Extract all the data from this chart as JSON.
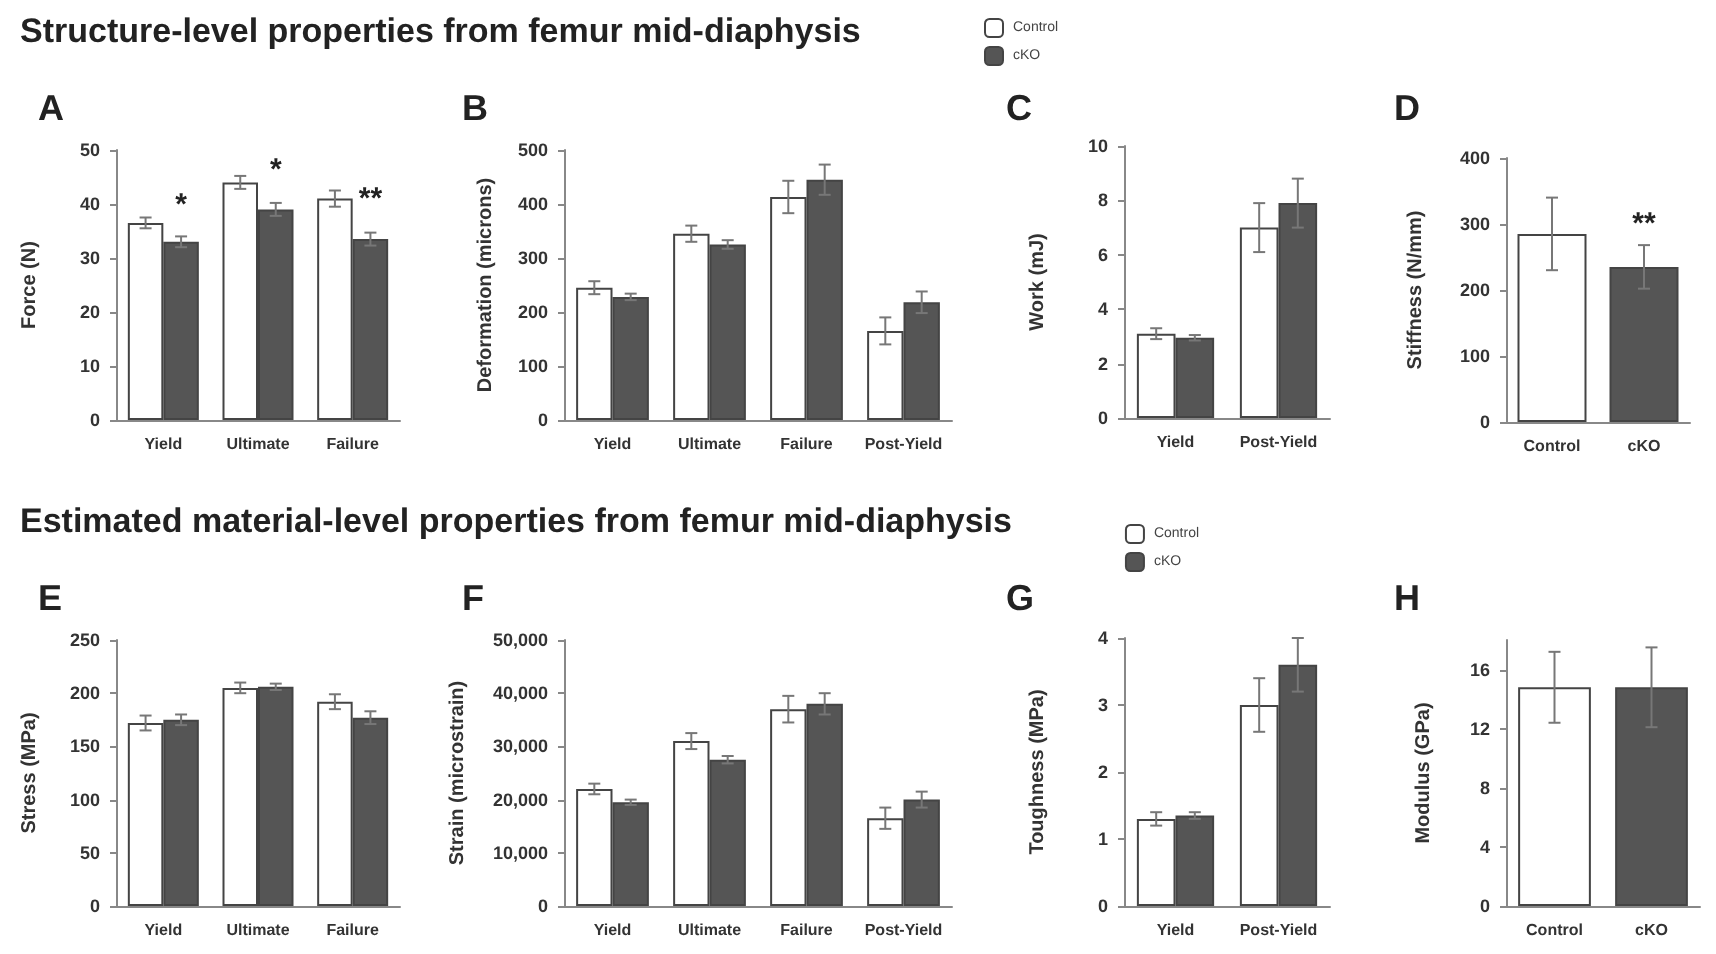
{
  "chart_data": [
    {
      "type": "bar",
      "title": "A",
      "ylabel": "Force (N)",
      "categories": [
        "Yield",
        "Ultimate",
        "Failure"
      ],
      "series": [
        {
          "color": "#ffffff",
          "values": [
            36.5,
            44,
            41
          ],
          "errors": [
            1,
            1.2,
            1.5
          ]
        },
        {
          "color": "#555555",
          "values": [
            33,
            39,
            33.5
          ],
          "errors": [
            1,
            1.2,
            1.2
          ]
        }
      ],
      "ylim": [
        0,
        50
      ],
      "yticks": [
        0,
        10,
        20,
        30,
        40,
        50
      ],
      "annotations": [
        "Structure-level properties from femur mid-diaphysis",
        {
          "text": "*",
          "x": "Yield",
          "y": 36
        },
        {
          "text": "*",
          "x": "Ultimate",
          "y": 42.5
        },
        {
          "text": "**",
          "x": "Failure",
          "y": 37
        }
      ]
    },
    {
      "type": "bar",
      "title": "B",
      "ylabel": "Deformation (microns)",
      "categories": [
        "Yield",
        "Ultimate",
        "Failure",
        "Post-Yield"
      ],
      "series": [
        {
          "color": "#ffffff",
          "values": [
            245,
            345,
            413,
            165
          ],
          "errors": [
            12,
            15,
            30,
            25
          ]
        },
        {
          "color": "#555555",
          "values": [
            228,
            325,
            445,
            218
          ],
          "errors": [
            6,
            8,
            28,
            20
          ]
        }
      ],
      "ylim": [
        0,
        500
      ],
      "yticks": [
        0,
        100,
        200,
        300,
        400,
        500
      ]
    },
    {
      "type": "bar",
      "title": "C",
      "ylabel": "Work (mJ)",
      "categories": [
        "Yield",
        "Post-Yield"
      ],
      "legend": "top left",
      "series": [
        {
          "name": "Control",
          "color": "#ffffff",
          "values": [
            3.1,
            7.0
          ],
          "errors": [
            0.2,
            0.9
          ]
        },
        {
          "name": "cKO",
          "color": "#555555",
          "values": [
            2.95,
            7.9
          ],
          "errors": [
            0.1,
            0.9
          ]
        }
      ],
      "ylim": [
        0,
        10
      ],
      "yticks": [
        0,
        2,
        4,
        6,
        8,
        10
      ]
    },
    {
      "type": "bar",
      "title": "D",
      "ylabel": "Stiffness (N/mm)",
      "categories": [
        "Control",
        "cKO"
      ],
      "values": [
        285,
        235
      ],
      "errors": [
        55,
        33
      ],
      "colors": [
        "#ffffff",
        "#555555"
      ],
      "ylim": [
        0,
        400
      ],
      "yticks": [
        0,
        100,
        200,
        300,
        400
      ],
      "annotations": [
        {
          "text": "**",
          "x": "cKO",
          "y": 268
        }
      ]
    },
    {
      "type": "bar",
      "title": "E",
      "ylabel": "Stress (MPa)",
      "categories": [
        "Yield",
        "Ultimate",
        "Failure"
      ],
      "series": [
        {
          "color": "#ffffff",
          "values": [
            172,
            205,
            192
          ],
          "errors": [
            7,
            5,
            7
          ]
        },
        {
          "color": "#555555",
          "values": [
            175,
            206,
            177
          ],
          "errors": [
            5,
            3,
            6
          ]
        }
      ],
      "ylim": [
        0,
        250
      ],
      "yticks": [
        0,
        50,
        100,
        150,
        200,
        250
      ],
      "annotations": [
        "Estimated material-level properties from femur mid-diaphysis"
      ]
    },
    {
      "type": "bar",
      "title": "F",
      "ylabel": "Strain (microstrain)",
      "categories": [
        "Yield",
        "Ultimate",
        "Failure",
        "Post-Yield"
      ],
      "series": [
        {
          "color": "#ffffff",
          "values": [
            22000,
            31000,
            37000,
            16500
          ],
          "errors": [
            1000,
            1500,
            2500,
            2000
          ]
        },
        {
          "color": "#555555",
          "values": [
            19500,
            27500,
            38000,
            20000
          ],
          "errors": [
            500,
            700,
            2000,
            1500
          ]
        }
      ],
      "ylim": [
        0,
        50000
      ],
      "yticks": [
        0,
        {
          "value": 10000,
          "label": "10,000"
        },
        {
          "value": 20000,
          "label": "20,000"
        },
        {
          "value": 30000,
          "label": "30,000"
        },
        {
          "value": 40000,
          "label": "40,000"
        },
        {
          "value": 50000,
          "label": "50,000"
        }
      ]
    },
    {
      "type": "bar",
      "title": "G",
      "ylabel": "Toughness (MPa)",
      "categories": [
        "Yield",
        "Post-Yield"
      ],
      "legend": "top",
      "series": [
        {
          "name": "Control",
          "color": "#ffffff",
          "values": [
            1.3,
            3.0
          ],
          "errors": [
            0.1,
            0.4
          ]
        },
        {
          "name": "cKO",
          "color": "#555555",
          "values": [
            1.35,
            3.6
          ],
          "errors": [
            0.05,
            0.4
          ]
        }
      ],
      "ylim": [
        0,
        4
      ],
      "yticks": [
        0,
        1,
        2,
        3,
        4
      ]
    },
    {
      "type": "bar",
      "title": "H",
      "ylabel": "Modulus (GPa)",
      "categories": [
        "Control",
        "cKO"
      ],
      "values": [
        14.8,
        14.8
      ],
      "errors": [
        2.4,
        2.7
      ],
      "colors": [
        "#ffffff",
        "#555555"
      ],
      "ylim": [
        0,
        18
      ],
      "yticks": [
        0,
        4,
        8,
        12,
        16
      ]
    }
  ]
}
